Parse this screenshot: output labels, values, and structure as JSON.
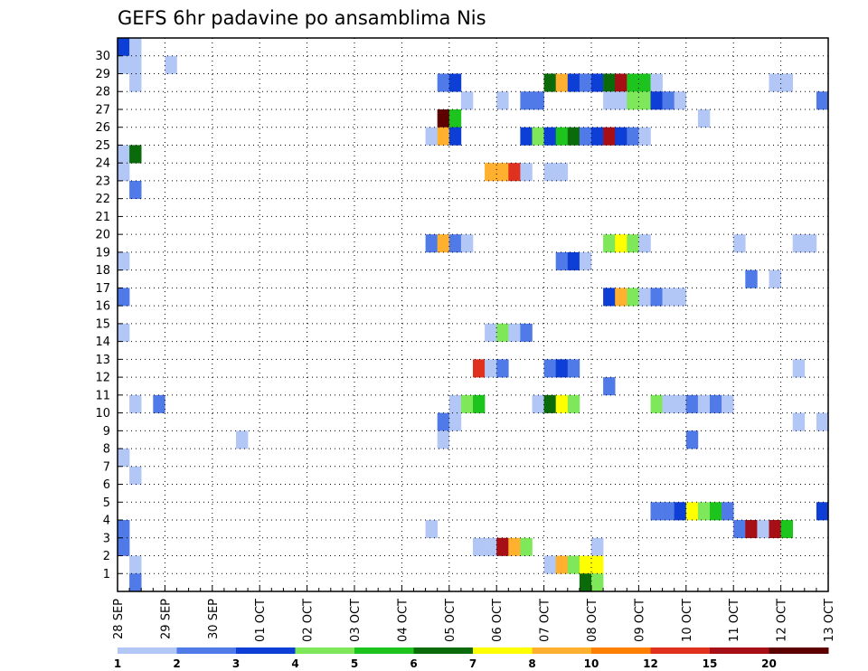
{
  "chart_data": {
    "type": "heatmap",
    "title": "GEFS 6hr padavine po ansamblima Nis",
    "x_tick_labels": [
      "28 SEP",
      "29 SEP",
      "30 SEP",
      "01 OCT",
      "02 OCT",
      "03 OCT",
      "04 OCT",
      "05 OCT",
      "06 OCT",
      "07 OCT",
      "08 OCT",
      "09 OCT",
      "10 OCT",
      "11 OCT",
      "12 OCT",
      "13 OCT"
    ],
    "y_tick_labels": [
      "1",
      "2",
      "3",
      "4",
      "5",
      "6",
      "7",
      "8",
      "9",
      "10",
      "11",
      "12",
      "13",
      "14",
      "15",
      "16",
      "17",
      "18",
      "19",
      "20",
      "21",
      "22",
      "23",
      "24",
      "25",
      "26",
      "27",
      "28",
      "29",
      "30"
    ],
    "x_step_hours": 6,
    "grid": true,
    "legend": {
      "placement": "bottom",
      "tick_labels": [
        "1",
        "2",
        "3",
        "4",
        "5",
        "6",
        "7",
        "8",
        "10",
        "12",
        "15",
        "20"
      ],
      "colors": [
        "#b3c7f7",
        "#4f7ae8",
        "#0d3ed6",
        "#7ee85a",
        "#1ec41e",
        "#0b6b0b",
        "#ffff00",
        "#ffb02e",
        "#ff7f00",
        "#e0301e",
        "#a50f15",
        "#5c0000"
      ]
    },
    "cells": [
      {
        "member": 30,
        "step": 1,
        "value": 3
      },
      {
        "member": 30,
        "step": 2,
        "value": 1
      },
      {
        "member": 29,
        "step": 1,
        "value": 1
      },
      {
        "member": 29,
        "step": 2,
        "value": 1
      },
      {
        "member": 29,
        "step": 5,
        "value": 1
      },
      {
        "member": 28,
        "step": 2,
        "value": 1
      },
      {
        "member": 28,
        "step": 28,
        "value": 2
      },
      {
        "member": 28,
        "step": 29,
        "value": 3
      },
      {
        "member": 28,
        "step": 37,
        "value": 6
      },
      {
        "member": 28,
        "step": 38,
        "value": 8
      },
      {
        "member": 28,
        "step": 39,
        "value": 3
      },
      {
        "member": 28,
        "step": 40,
        "value": 2
      },
      {
        "member": 28,
        "step": 41,
        "value": 3
      },
      {
        "member": 28,
        "step": 42,
        "value": 6
      },
      {
        "member": 28,
        "step": 43,
        "value": 15
      },
      {
        "member": 28,
        "step": 44,
        "value": 5
      },
      {
        "member": 28,
        "step": 45,
        "value": 5
      },
      {
        "member": 28,
        "step": 46,
        "value": 1
      },
      {
        "member": 28,
        "step": 56,
        "value": 1
      },
      {
        "member": 28,
        "step": 57,
        "value": 1
      },
      {
        "member": 27,
        "step": 30,
        "value": 1
      },
      {
        "member": 27,
        "step": 33,
        "value": 1
      },
      {
        "member": 27,
        "step": 35,
        "value": 2
      },
      {
        "member": 27,
        "step": 36,
        "value": 2
      },
      {
        "member": 27,
        "step": 42,
        "value": 1
      },
      {
        "member": 27,
        "step": 43,
        "value": 1
      },
      {
        "member": 27,
        "step": 44,
        "value": 4
      },
      {
        "member": 27,
        "step": 45,
        "value": 4
      },
      {
        "member": 27,
        "step": 46,
        "value": 3
      },
      {
        "member": 27,
        "step": 47,
        "value": 2
      },
      {
        "member": 27,
        "step": 48,
        "value": 1
      },
      {
        "member": 27,
        "step": 60,
        "value": 2
      },
      {
        "member": 26,
        "step": 28,
        "value": 20
      },
      {
        "member": 26,
        "step": 29,
        "value": 5
      },
      {
        "member": 26,
        "step": 50,
        "value": 1
      },
      {
        "member": 25,
        "step": 27,
        "value": 1
      },
      {
        "member": 25,
        "step": 28,
        "value": 8
      },
      {
        "member": 25,
        "step": 29,
        "value": 3
      },
      {
        "member": 25,
        "step": 35,
        "value": 3
      },
      {
        "member": 25,
        "step": 36,
        "value": 4
      },
      {
        "member": 25,
        "step": 37,
        "value": 3
      },
      {
        "member": 25,
        "step": 38,
        "value": 5
      },
      {
        "member": 25,
        "step": 39,
        "value": 6
      },
      {
        "member": 25,
        "step": 40,
        "value": 2
      },
      {
        "member": 25,
        "step": 41,
        "value": 3
      },
      {
        "member": 25,
        "step": 42,
        "value": 15
      },
      {
        "member": 25,
        "step": 43,
        "value": 3
      },
      {
        "member": 25,
        "step": 44,
        "value": 2
      },
      {
        "member": 25,
        "step": 45,
        "value": 1
      },
      {
        "member": 24,
        "step": 1,
        "value": 1
      },
      {
        "member": 24,
        "step": 2,
        "value": 6
      },
      {
        "member": 23,
        "step": 1,
        "value": 1
      },
      {
        "member": 23,
        "step": 32,
        "value": 8
      },
      {
        "member": 23,
        "step": 33,
        "value": 8
      },
      {
        "member": 23,
        "step": 34,
        "value": 12
      },
      {
        "member": 23,
        "step": 35,
        "value": 1
      },
      {
        "member": 23,
        "step": 37,
        "value": 1
      },
      {
        "member": 23,
        "step": 38,
        "value": 1
      },
      {
        "member": 22,
        "step": 2,
        "value": 2
      },
      {
        "member": 19,
        "step": 27,
        "value": 2
      },
      {
        "member": 19,
        "step": 28,
        "value": 8
      },
      {
        "member": 19,
        "step": 29,
        "value": 2
      },
      {
        "member": 19,
        "step": 30,
        "value": 1
      },
      {
        "member": 19,
        "step": 42,
        "value": 4
      },
      {
        "member": 19,
        "step": 43,
        "value": 7
      },
      {
        "member": 19,
        "step": 44,
        "value": 4
      },
      {
        "member": 19,
        "step": 45,
        "value": 1
      },
      {
        "member": 19,
        "step": 53,
        "value": 1
      },
      {
        "member": 19,
        "step": 58,
        "value": 1
      },
      {
        "member": 19,
        "step": 59,
        "value": 1
      },
      {
        "member": 18,
        "step": 1,
        "value": 1
      },
      {
        "member": 18,
        "step": 38,
        "value": 2
      },
      {
        "member": 18,
        "step": 39,
        "value": 3
      },
      {
        "member": 18,
        "step": 40,
        "value": 1
      },
      {
        "member": 17,
        "step": 54,
        "value": 2
      },
      {
        "member": 17,
        "step": 56,
        "value": 1
      },
      {
        "member": 16,
        "step": 1,
        "value": 2
      },
      {
        "member": 16,
        "step": 42,
        "value": 3
      },
      {
        "member": 16,
        "step": 43,
        "value": 8
      },
      {
        "member": 16,
        "step": 44,
        "value": 4
      },
      {
        "member": 16,
        "step": 45,
        "value": 1
      },
      {
        "member": 16,
        "step": 46,
        "value": 2
      },
      {
        "member": 16,
        "step": 47,
        "value": 1
      },
      {
        "member": 16,
        "step": 48,
        "value": 1
      },
      {
        "member": 14,
        "step": 1,
        "value": 1
      },
      {
        "member": 14,
        "step": 32,
        "value": 1
      },
      {
        "member": 14,
        "step": 33,
        "value": 4
      },
      {
        "member": 14,
        "step": 34,
        "value": 1
      },
      {
        "member": 14,
        "step": 35,
        "value": 2
      },
      {
        "member": 12,
        "step": 31,
        "value": 12
      },
      {
        "member": 12,
        "step": 32,
        "value": 1
      },
      {
        "member": 12,
        "step": 33,
        "value": 2
      },
      {
        "member": 12,
        "step": 37,
        "value": 2
      },
      {
        "member": 12,
        "step": 38,
        "value": 3
      },
      {
        "member": 12,
        "step": 39,
        "value": 2
      },
      {
        "member": 12,
        "step": 58,
        "value": 1
      },
      {
        "member": 11,
        "step": 42,
        "value": 2
      },
      {
        "member": 10,
        "step": 2,
        "value": 1
      },
      {
        "member": 10,
        "step": 4,
        "value": 2
      },
      {
        "member": 10,
        "step": 29,
        "value": 1
      },
      {
        "member": 10,
        "step": 30,
        "value": 4
      },
      {
        "member": 10,
        "step": 31,
        "value": 5
      },
      {
        "member": 10,
        "step": 36,
        "value": 1
      },
      {
        "member": 10,
        "step": 37,
        "value": 6
      },
      {
        "member": 10,
        "step": 38,
        "value": 7
      },
      {
        "member": 10,
        "step": 39,
        "value": 4
      },
      {
        "member": 10,
        "step": 46,
        "value": 4
      },
      {
        "member": 10,
        "step": 47,
        "value": 1
      },
      {
        "member": 10,
        "step": 48,
        "value": 1
      },
      {
        "member": 10,
        "step": 49,
        "value": 2
      },
      {
        "member": 10,
        "step": 50,
        "value": 1
      },
      {
        "member": 10,
        "step": 51,
        "value": 2
      },
      {
        "member": 10,
        "step": 52,
        "value": 1
      },
      {
        "member": 9,
        "step": 28,
        "value": 2
      },
      {
        "member": 9,
        "step": 29,
        "value": 1
      },
      {
        "member": 9,
        "step": 58,
        "value": 1
      },
      {
        "member": 9,
        "step": 60,
        "value": 1
      },
      {
        "member": 8,
        "step": 11,
        "value": 1
      },
      {
        "member": 8,
        "step": 28,
        "value": 1
      },
      {
        "member": 8,
        "step": 49,
        "value": 2
      },
      {
        "member": 7,
        "step": 1,
        "value": 1
      },
      {
        "member": 6,
        "step": 2,
        "value": 1
      },
      {
        "member": 4,
        "step": 46,
        "value": 2
      },
      {
        "member": 4,
        "step": 47,
        "value": 2
      },
      {
        "member": 4,
        "step": 48,
        "value": 3
      },
      {
        "member": 4,
        "step": 49,
        "value": 7
      },
      {
        "member": 4,
        "step": 50,
        "value": 4
      },
      {
        "member": 4,
        "step": 51,
        "value": 5
      },
      {
        "member": 4,
        "step": 52,
        "value": 2
      },
      {
        "member": 4,
        "step": 60,
        "value": 3
      },
      {
        "member": 3,
        "step": 1,
        "value": 2
      },
      {
        "member": 3,
        "step": 27,
        "value": 1
      },
      {
        "member": 3,
        "step": 53,
        "value": 2
      },
      {
        "member": 3,
        "step": 54,
        "value": 15
      },
      {
        "member": 3,
        "step": 55,
        "value": 1
      },
      {
        "member": 3,
        "step": 56,
        "value": 15
      },
      {
        "member": 3,
        "step": 57,
        "value": 5
      },
      {
        "member": 2,
        "step": 1,
        "value": 2
      },
      {
        "member": 2,
        "step": 31,
        "value": 1
      },
      {
        "member": 2,
        "step": 32,
        "value": 1
      },
      {
        "member": 2,
        "step": 33,
        "value": 15
      },
      {
        "member": 2,
        "step": 34,
        "value": 8
      },
      {
        "member": 2,
        "step": 35,
        "value": 4
      },
      {
        "member": 2,
        "step": 41,
        "value": 1
      },
      {
        "member": 1,
        "step": 2,
        "value": 1
      },
      {
        "member": 1,
        "step": 37,
        "value": 1
      },
      {
        "member": 1,
        "step": 38,
        "value": 8
      },
      {
        "member": 1,
        "step": 39,
        "value": 4
      },
      {
        "member": 1,
        "step": 40,
        "value": 7
      },
      {
        "member": 1,
        "step": 41,
        "value": 7
      },
      {
        "member": 0,
        "step": 2,
        "value": 2
      },
      {
        "member": 0,
        "step": 40,
        "value": 6
      },
      {
        "member": 0,
        "step": 41,
        "value": 4
      }
    ]
  }
}
